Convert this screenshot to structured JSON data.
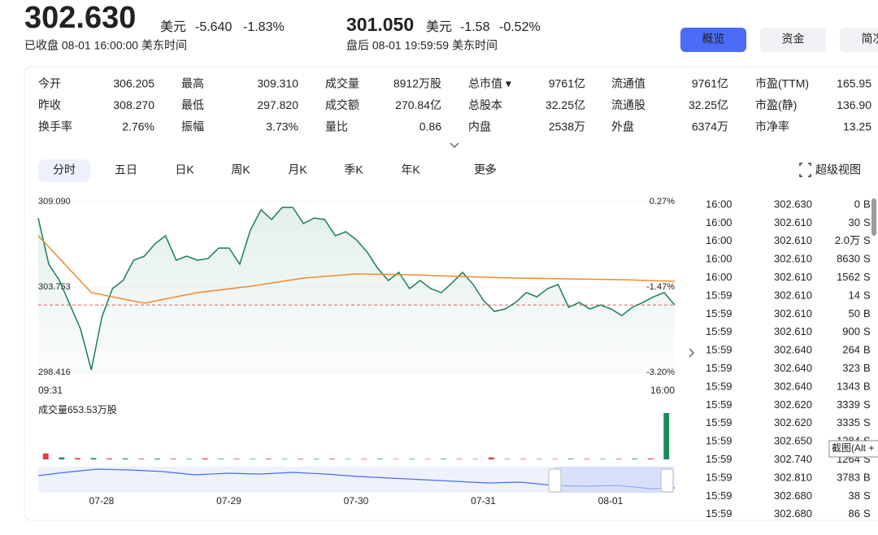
{
  "quote": {
    "price": "302.630",
    "currency": "美元",
    "change": "-5.640",
    "pct": "-1.83%",
    "status": "已收盘 08-01 16:00:00 美东时间"
  },
  "after_hours": {
    "price": "301.050",
    "currency": "美元",
    "change": "-1.58",
    "pct": "-0.52%",
    "status": "盘后 08-01 19:59:59 美东时间"
  },
  "top_tabs": [
    "概览",
    "资金",
    "简况"
  ],
  "stats": [
    [
      {
        "label": "今开",
        "value": "306.205",
        "color": "#14875a"
      },
      {
        "label": "最高",
        "value": "309.310",
        "color": "#e03e3e"
      },
      {
        "label": "成交量",
        "value": "8912万股",
        "color": "#222"
      },
      {
        "label": "总市值 ▾",
        "value": "9761亿",
        "color": "#222"
      },
      {
        "label": "流通值",
        "value": "9761亿",
        "color": "#222"
      },
      {
        "label": "市盈(TTM)",
        "value": "165.95",
        "color": "#222"
      }
    ],
    [
      {
        "label": "昨收",
        "value": "308.270",
        "color": "#222"
      },
      {
        "label": "最低",
        "value": "297.820",
        "color": "#14875a"
      },
      {
        "label": "成交额",
        "value": "270.84亿",
        "color": "#222"
      },
      {
        "label": "总股本",
        "value": "32.25亿",
        "color": "#222"
      },
      {
        "label": "流通股",
        "value": "32.25亿",
        "color": "#222"
      },
      {
        "label": "市盈(静)",
        "value": "136.90",
        "color": "#222"
      }
    ],
    [
      {
        "label": "换手率",
        "value": "2.76%",
        "color": "#222"
      },
      {
        "label": "振幅",
        "value": "3.73%",
        "color": "#222"
      },
      {
        "label": "量比",
        "value": "0.86",
        "color": "#14875a"
      },
      {
        "label": "内盘",
        "value": "2538万",
        "color": "#14875a"
      },
      {
        "label": "外盘",
        "value": "6374万",
        "color": "#e03e3e"
      },
      {
        "label": "市净率",
        "value": "13.25",
        "color": "#222"
      }
    ]
  ],
  "chart_tabs": [
    "分时",
    "五日",
    "日K",
    "周K",
    "月K",
    "季K",
    "年K",
    "更多"
  ],
  "super_view": "超级视图",
  "chart": {
    "type": "line",
    "ylim": [
      298.416,
      309.09
    ],
    "yticks": [
      {
        "value": 309.09,
        "label": "309.090"
      },
      {
        "value": 303.753,
        "label": "303.753"
      },
      {
        "value": 298.416,
        "label": "298.416"
      }
    ],
    "y2lim": [
      -3.2,
      0.27
    ],
    "y2ticks": [
      {
        "value": 0.27,
        "label": "0.27%"
      },
      {
        "value": -1.47,
        "label": "-1.47%"
      },
      {
        "value": -3.2,
        "label": "-3.20%"
      }
    ],
    "x_labels": [
      "09:31",
      "16:00"
    ],
    "series": [
      {
        "color": "#1a7f5a",
        "values": [
          308.07,
          305.18,
          304.16,
          302.63,
          301.11,
          298.57,
          301.87,
          303.65,
          304.16,
          305.43,
          305.68,
          306.45,
          306.96,
          305.43,
          305.68,
          305.43,
          305.53,
          306.19,
          306.19,
          305.18,
          307.31,
          308.58,
          307.97,
          308.73,
          308.73,
          307.72,
          308.07,
          307.97,
          306.96,
          307.21,
          306.7,
          305.94,
          304.92,
          304.16,
          304.67,
          303.65,
          304.16,
          303.65,
          303.4,
          304.01,
          304.67,
          303.91,
          302.89,
          302.23,
          302.38,
          302.79,
          303.4,
          303.14,
          303.65,
          303.91,
          302.48,
          302.79,
          302.38,
          302.63,
          302.38,
          301.97,
          302.48,
          302.79,
          303.14,
          303.4,
          302.63
        ]
      },
      {
        "color": "#f08a2c",
        "values": [
          306.96,
          303.4,
          302.74,
          303.4,
          303.8,
          304.31,
          304.57,
          304.52,
          304.41,
          304.31,
          304.26,
          304.21,
          304.11
        ]
      }
    ],
    "volume": {
      "label": "成交量653.53万股",
      "colors": [
        "#e03e3e",
        "#1a8a5a"
      ],
      "values": [
        9,
        3,
        2,
        2,
        1.5,
        1.5,
        1,
        1.2,
        1,
        0.8,
        1.4,
        0.9,
        1,
        0.8,
        1.1,
        0.7,
        0.9,
        0.8,
        1,
        0.7,
        0.8,
        0.9,
        0.6,
        0.8,
        0.7,
        0.9,
        0.8,
        0.6,
        3,
        0.7,
        0.8,
        0.6,
        0.7,
        0.9,
        0.8,
        0.7,
        0.9,
        1,
        1.5,
        70
      ]
    },
    "minimap_dates": [
      "07-28",
      "07-29",
      "07-30",
      "07-31",
      "08-01"
    ]
  },
  "trades": {
    "rows": [
      [
        "16:00",
        "302.630",
        "0",
        "B"
      ],
      [
        "16:00",
        "302.610",
        "30",
        "S"
      ],
      [
        "16:00",
        "302.610",
        "2.0万",
        "S"
      ],
      [
        "16:00",
        "302.610",
        "8630",
        "S"
      ],
      [
        "16:00",
        "302.610",
        "1562",
        "S"
      ],
      [
        "15:59",
        "302.610",
        "14",
        "S"
      ],
      [
        "15:59",
        "302.610",
        "50",
        "B"
      ],
      [
        "15:59",
        "302.610",
        "900",
        "S"
      ],
      [
        "15:59",
        "302.640",
        "264",
        "B"
      ],
      [
        "15:59",
        "302.640",
        "323",
        "B"
      ],
      [
        "15:59",
        "302.640",
        "1343",
        "B"
      ],
      [
        "15:59",
        "302.620",
        "3339",
        "S"
      ],
      [
        "15:59",
        "302.620",
        "3335",
        "S"
      ],
      [
        "15:59",
        "302.650",
        "1284",
        "S"
      ],
      [
        "15:59",
        "302.740",
        "1264",
        "S"
      ],
      [
        "15:59",
        "302.810",
        "3783",
        "B"
      ],
      [
        "15:59",
        "302.680",
        "38",
        "S"
      ],
      [
        "15:59",
        "302.680",
        "86",
        "S"
      ]
    ]
  },
  "tooltip": "截图(Alt +"
}
